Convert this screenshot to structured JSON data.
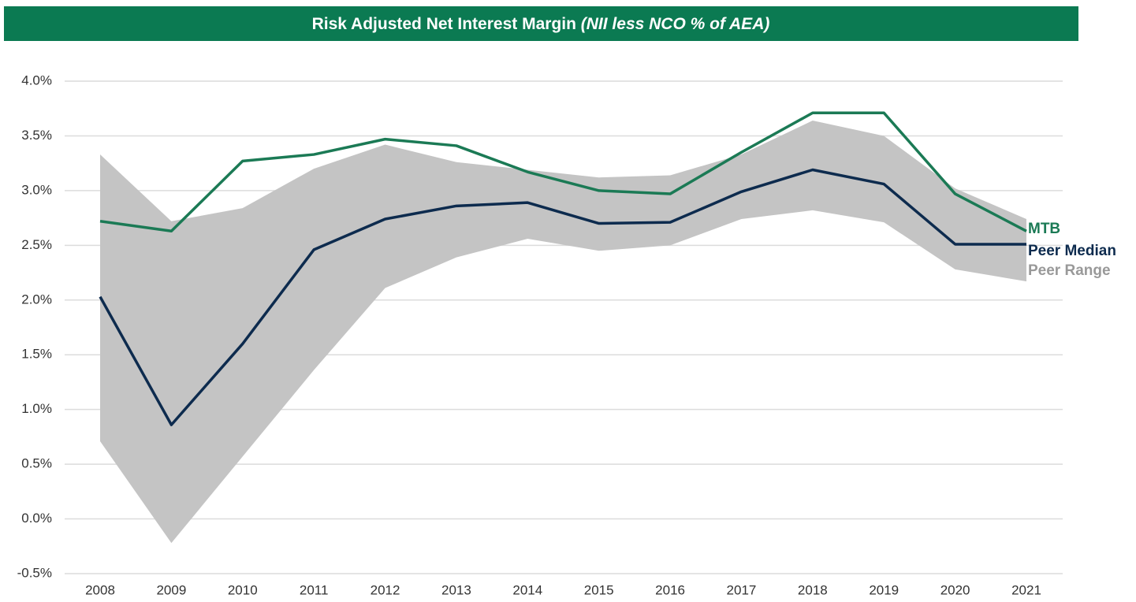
{
  "chart_data": {
    "type": "line",
    "title": "Risk Adjusted Net Interest Margin",
    "subtitle": "(NII less NCO % of AEA)",
    "categories": [
      "2008",
      "2009",
      "2010",
      "2011",
      "2012",
      "2013",
      "2014",
      "2015",
      "2016",
      "2017",
      "2018",
      "2019",
      "2020",
      "2021"
    ],
    "series": [
      {
        "name": "MTB",
        "color": "#1b7a55",
        "values": [
          2.72,
          2.63,
          3.27,
          3.33,
          3.47,
          3.41,
          3.17,
          3.0,
          2.97,
          3.35,
          3.71,
          3.71,
          2.97,
          2.63
        ]
      },
      {
        "name": "Peer Median",
        "color": "#0d2b4e",
        "values": [
          2.03,
          0.86,
          1.6,
          2.46,
          2.74,
          2.86,
          2.89,
          2.7,
          2.71,
          2.99,
          3.19,
          3.06,
          2.51,
          2.51
        ]
      },
      {
        "name": "Peer Range",
        "color": "#c4c4c4",
        "legend_color": "#999999",
        "high": [
          3.33,
          2.72,
          2.84,
          3.2,
          3.42,
          3.26,
          3.19,
          3.12,
          3.14,
          3.33,
          3.64,
          3.5,
          3.02,
          2.74
        ],
        "low": [
          0.71,
          -0.22,
          0.57,
          1.36,
          2.11,
          2.39,
          2.56,
          2.45,
          2.5,
          2.74,
          2.82,
          2.71,
          2.28,
          2.17
        ]
      }
    ],
    "ylim": [
      -0.5,
      4.0
    ],
    "yticks": [
      {
        "value": -0.5,
        "label": "-0.5%"
      },
      {
        "value": 0,
        "label": "0.0%"
      },
      {
        "value": 0.5,
        "label": "0.5%"
      },
      {
        "value": 1,
        "label": "1.0%"
      },
      {
        "value": 1.5,
        "label": "1.5%"
      },
      {
        "value": 2,
        "label": "2.0%"
      },
      {
        "value": 2.5,
        "label": "2.5%"
      },
      {
        "value": 3,
        "label": "3.0%"
      },
      {
        "value": 3.5,
        "label": "3.5%"
      },
      {
        "value": 4,
        "label": "4.0%"
      }
    ],
    "grid": true,
    "legend": "right"
  }
}
